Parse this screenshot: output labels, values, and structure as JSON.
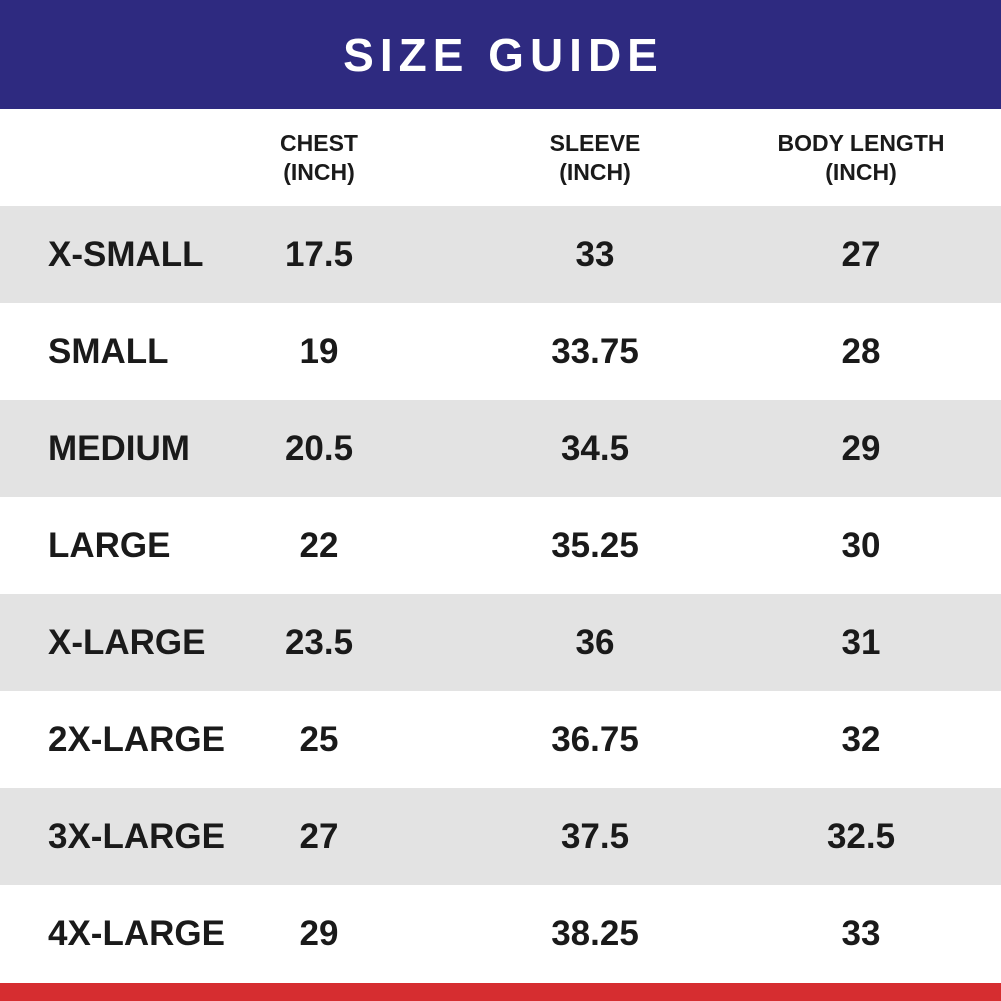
{
  "title": "SIZE GUIDE",
  "colors": {
    "banner": "#2e2a80",
    "stripe": "#e3e3e3",
    "bottom_bar": "#d62d30",
    "text": "#1a1a1a"
  },
  "columns": [
    {
      "line1": "CHEST",
      "line2": "(INCH)"
    },
    {
      "line1": "SLEEVE",
      "line2": "(INCH)"
    },
    {
      "line1": "BODY LENGTH",
      "line2": "(INCH)"
    }
  ],
  "rows": [
    {
      "size": "X-SMALL",
      "chest": "17.5",
      "sleeve": "33",
      "body_length": "27"
    },
    {
      "size": "SMALL",
      "chest": "19",
      "sleeve": "33.75",
      "body_length": "28"
    },
    {
      "size": "MEDIUM",
      "chest": "20.5",
      "sleeve": "34.5",
      "body_length": "29"
    },
    {
      "size": "LARGE",
      "chest": "22",
      "sleeve": "35.25",
      "body_length": "30"
    },
    {
      "size": "X-LARGE",
      "chest": "23.5",
      "sleeve": "36",
      "body_length": "31"
    },
    {
      "size": "2X-LARGE",
      "chest": "25",
      "sleeve": "36.75",
      "body_length": "32"
    },
    {
      "size": "3X-LARGE",
      "chest": "27",
      "sleeve": "37.5",
      "body_length": "32.5"
    },
    {
      "size": "4X-LARGE",
      "chest": "29",
      "sleeve": "38.25",
      "body_length": "33"
    }
  ]
}
